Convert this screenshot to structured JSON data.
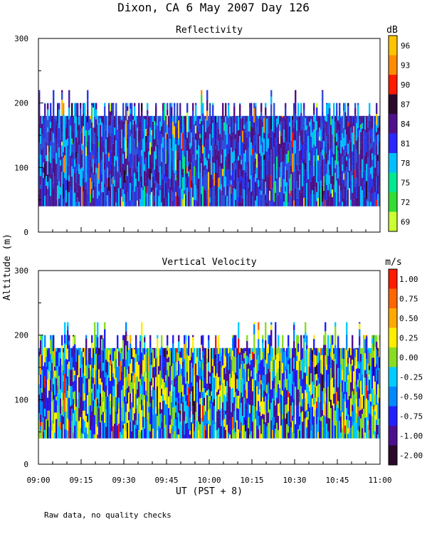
{
  "title": "Dixon, CA  6 May 2007  Day 126",
  "footnote": "Raw data, no quality checks",
  "xlabel": "UT  (PST + 8)",
  "ylabel": "Altitude (m)",
  "chart_data": [
    {
      "type": "heatmap",
      "title": "Reflectivity",
      "colorbar_unit": "dB",
      "xlabel": "UT  (PST + 8)",
      "ylabel": "Altitude (m)",
      "x_ticks": [
        "09:00",
        "09:15",
        "09:30",
        "09:45",
        "10:00",
        "10:15",
        "10:30",
        "10:45",
        "11:00"
      ],
      "x_range_minutes_after_0900": [
        0,
        120
      ],
      "y_ticks": [
        0,
        100,
        200,
        300
      ],
      "ylim": [
        0,
        300
      ],
      "data_altitude_range_m": [
        40,
        180
      ],
      "colorbar_labels": [
        "96",
        "93",
        "90",
        "87",
        "84",
        "81",
        "78",
        "75",
        "72",
        "69"
      ],
      "colorbar_colors": [
        "#ffc400",
        "#ff8c00",
        "#ff1a00",
        "#2a0a2a",
        "#50108c",
        "#2828ff",
        "#00bfff",
        "#00e890",
        "#33dd33",
        "#ccff33"
      ],
      "dominant_colors": [
        "#2a38e8",
        "#3050d8",
        "#4a20a0",
        "#00bfff",
        "#501080"
      ]
    },
    {
      "type": "heatmap",
      "title": "Vertical Velocity",
      "colorbar_unit": "m/s",
      "xlabel": "UT  (PST + 8)",
      "ylabel": "Altitude (m)",
      "x_ticks": [
        "09:00",
        "09:15",
        "09:30",
        "09:45",
        "10:00",
        "10:15",
        "10:30",
        "10:45",
        "11:00"
      ],
      "x_range_minutes_after_0900": [
        0,
        120
      ],
      "y_ticks": [
        0,
        100,
        200,
        300
      ],
      "ylim": [
        0,
        300
      ],
      "data_altitude_range_m": [
        40,
        180
      ],
      "colorbar_labels": [
        "1.00",
        "0.75",
        "0.50",
        "0.25",
        "0.00",
        "-0.25",
        "-0.50",
        "-0.75",
        "-1.00",
        "-2.00"
      ],
      "colorbar_colors": [
        "#ff1a00",
        "#ff6600",
        "#ffaa00",
        "#ffee00",
        "#88dd22",
        "#00ccff",
        "#0088ff",
        "#2020ff",
        "#4a1090",
        "#2a0a2a"
      ],
      "dominant_colors": [
        "#2020ff",
        "#0088ff",
        "#00ccff",
        "#88dd22",
        "#ffee00",
        "#4a1090"
      ]
    }
  ]
}
